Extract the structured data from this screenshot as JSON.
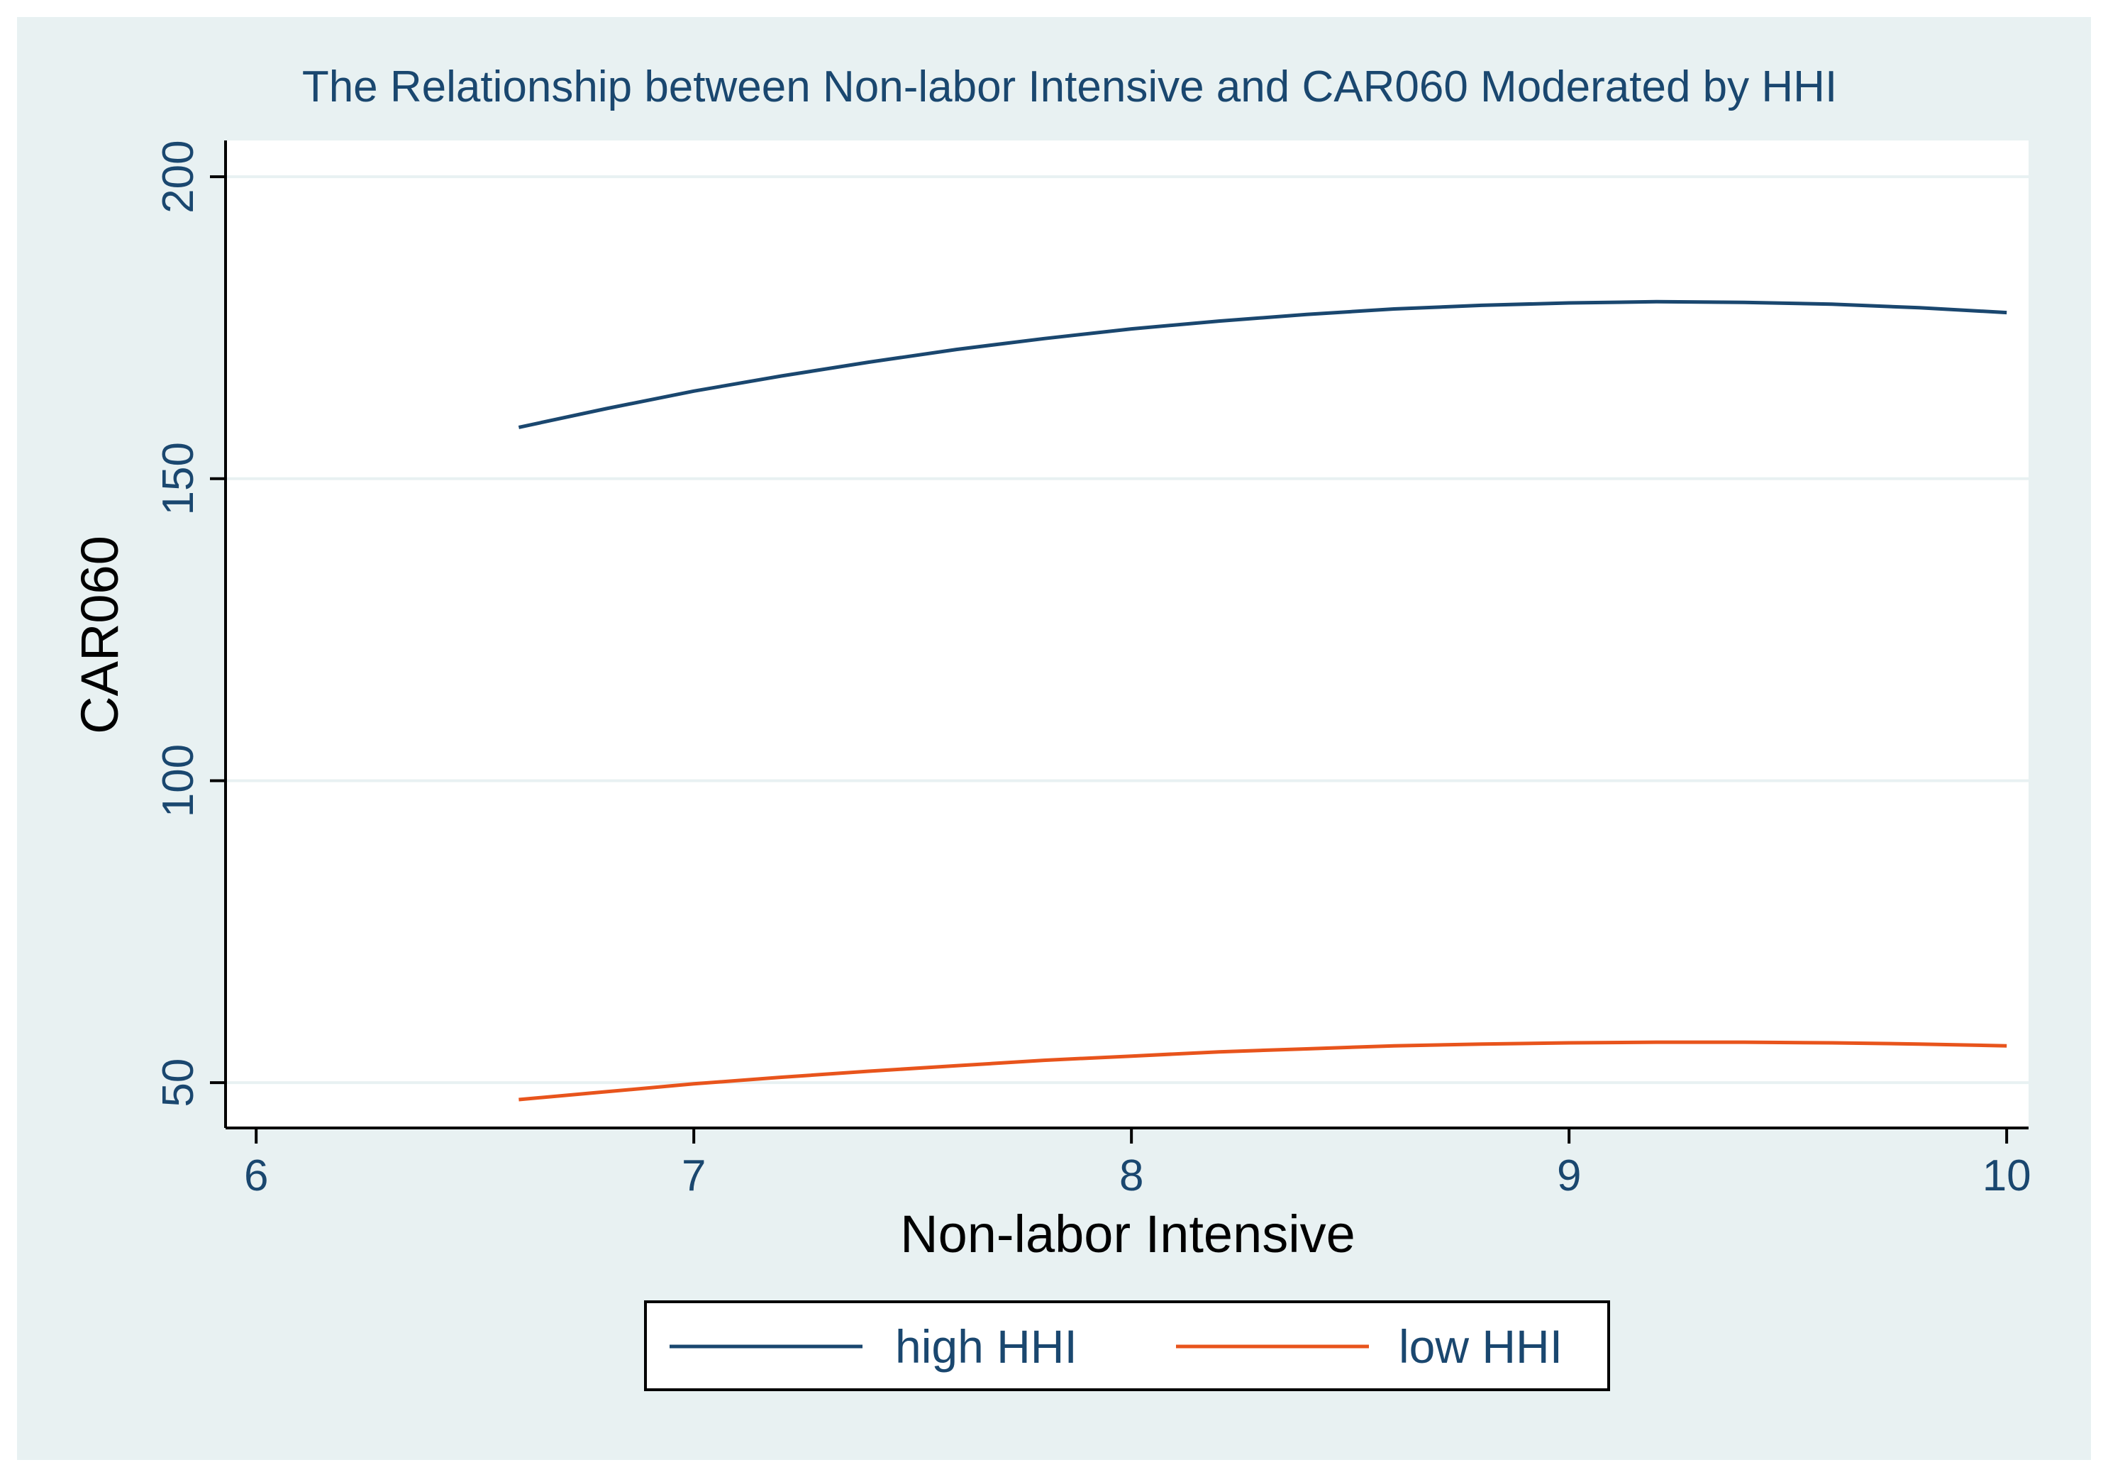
{
  "chart_data": {
    "type": "line",
    "title": "The Relationship between Non-labor Intensive and CAR060 Moderated by HHI",
    "xlabel": "Non-labor Intensive",
    "ylabel": "CAR060",
    "xlim": [
      5.93,
      10.05
    ],
    "ylim": [
      42.5,
      206
    ],
    "xticks": [
      6,
      7,
      8,
      9,
      10
    ],
    "xtick_labels": [
      "6",
      "7",
      "8",
      "9",
      "10"
    ],
    "yticks": [
      50,
      100,
      150,
      200
    ],
    "ytick_labels": [
      "50",
      "100",
      "150",
      "200"
    ],
    "grid": "horizontal",
    "legend_position": "bottom",
    "series": [
      {
        "name": "high HHI",
        "color": "#1a476f",
        "x": [
          6.6,
          6.8,
          7.0,
          7.2,
          7.4,
          7.6,
          7.8,
          8.0,
          8.2,
          8.4,
          8.6,
          8.8,
          9.0,
          9.2,
          9.4,
          9.6,
          9.8,
          10.0
        ],
        "y": [
          158.5,
          161.6,
          164.5,
          167.0,
          169.3,
          171.4,
          173.2,
          174.8,
          176.1,
          177.2,
          178.1,
          178.7,
          179.1,
          179.3,
          179.2,
          178.9,
          178.3,
          177.5
        ]
      },
      {
        "name": "low HHI",
        "color": "#e8541c",
        "x": [
          6.6,
          6.8,
          7.0,
          7.2,
          7.4,
          7.6,
          7.8,
          8.0,
          8.2,
          8.4,
          8.6,
          8.8,
          9.0,
          9.2,
          9.4,
          9.6,
          9.8,
          10.0
        ],
        "y": [
          47.2,
          48.5,
          49.8,
          50.9,
          51.9,
          52.8,
          53.7,
          54.4,
          55.1,
          55.6,
          56.1,
          56.4,
          56.6,
          56.7,
          56.7,
          56.6,
          56.4,
          56.1
        ]
      }
    ],
    "colors": {
      "outer_background": "#e8f1f2",
      "plot_background": "#ffffff",
      "gridline": "#e8f1f2",
      "text": "#1a476f",
      "axis_title": "#000000"
    }
  }
}
